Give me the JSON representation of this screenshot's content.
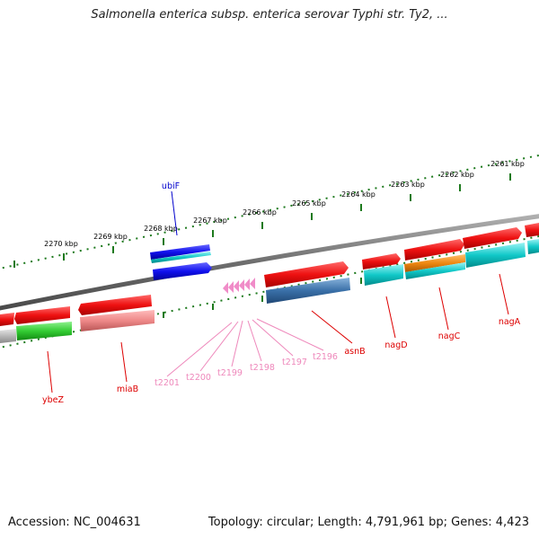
{
  "title": "Salmonella enterica subsp. enterica serovar Typhi str. Ty2, ...",
  "footer": {
    "accession": "Accession: NC_004631",
    "topology": "Topology: circular; Length: 4,791,961 bp; Genes: 4,423"
  },
  "colors": {
    "backbone": "#7a7a7a",
    "ruler": "#1e7a1e",
    "forward_gene": "#ee1111",
    "ubiF_gene": "#1111ee",
    "trna": "#f08cc8",
    "cds_cyan": "#11c8c8",
    "cds_orange": "#ee8811",
    "cds_green": "#33cc33",
    "cds_steel": "#3a70a8",
    "cds_pink": "#ee8888",
    "label_red": "#dd0000",
    "label_blue": "#0000cc",
    "label_pink": "#ee88bb"
  },
  "ruler_ticks": [
    "2261 kbp",
    "2262 kbp",
    "2263 kbp",
    "2264 kbp",
    "2265 kbp",
    "2266 kbp",
    "2267 kbp",
    "2268 kbp",
    "2269 kbp",
    "2270 kbp"
  ],
  "gene_labels": [
    "ubiF",
    "ybeZ",
    "miaB",
    "t2201",
    "t2200",
    "t2199",
    "t2198",
    "t2197",
    "t2196",
    "asnB",
    "nagD",
    "nagC",
    "nagA"
  ]
}
